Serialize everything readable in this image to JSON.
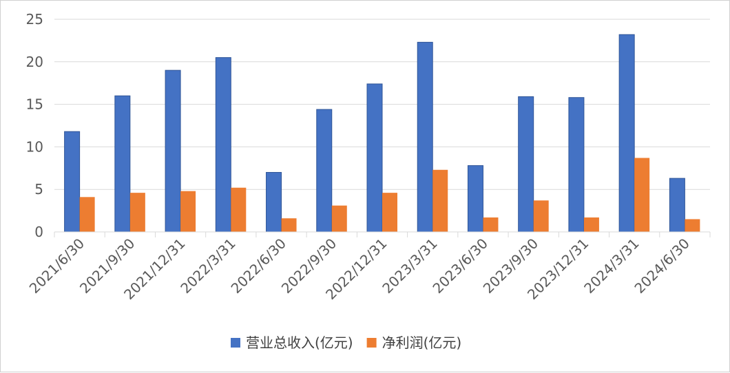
{
  "chart_data": {
    "type": "bar",
    "categories": [
      "2021/6/30",
      "2021/9/30",
      "2021/12/31",
      "2022/3/31",
      "2022/6/30",
      "2022/9/30",
      "2022/12/31",
      "2023/3/31",
      "2023/6/30",
      "2023/9/30",
      "2023/12/31",
      "2024/3/31",
      "2024/6/30"
    ],
    "series": [
      {
        "name": "营业总收入(亿元)",
        "color": "#4472C4",
        "values": [
          11.8,
          16.0,
          19.0,
          20.5,
          7.0,
          14.4,
          17.4,
          22.3,
          7.8,
          15.9,
          15.8,
          23.2,
          6.3
        ]
      },
      {
        "name": "净利润(亿元)",
        "color": "#ED7D31",
        "values": [
          4.1,
          4.6,
          4.8,
          5.2,
          1.6,
          3.1,
          4.6,
          7.3,
          1.7,
          3.7,
          1.7,
          8.7,
          1.5
        ]
      }
    ],
    "ylim": [
      0,
      25
    ],
    "yticks": [
      0,
      5,
      10,
      15,
      20,
      25
    ],
    "grid": true,
    "legend_position": "bottom"
  }
}
